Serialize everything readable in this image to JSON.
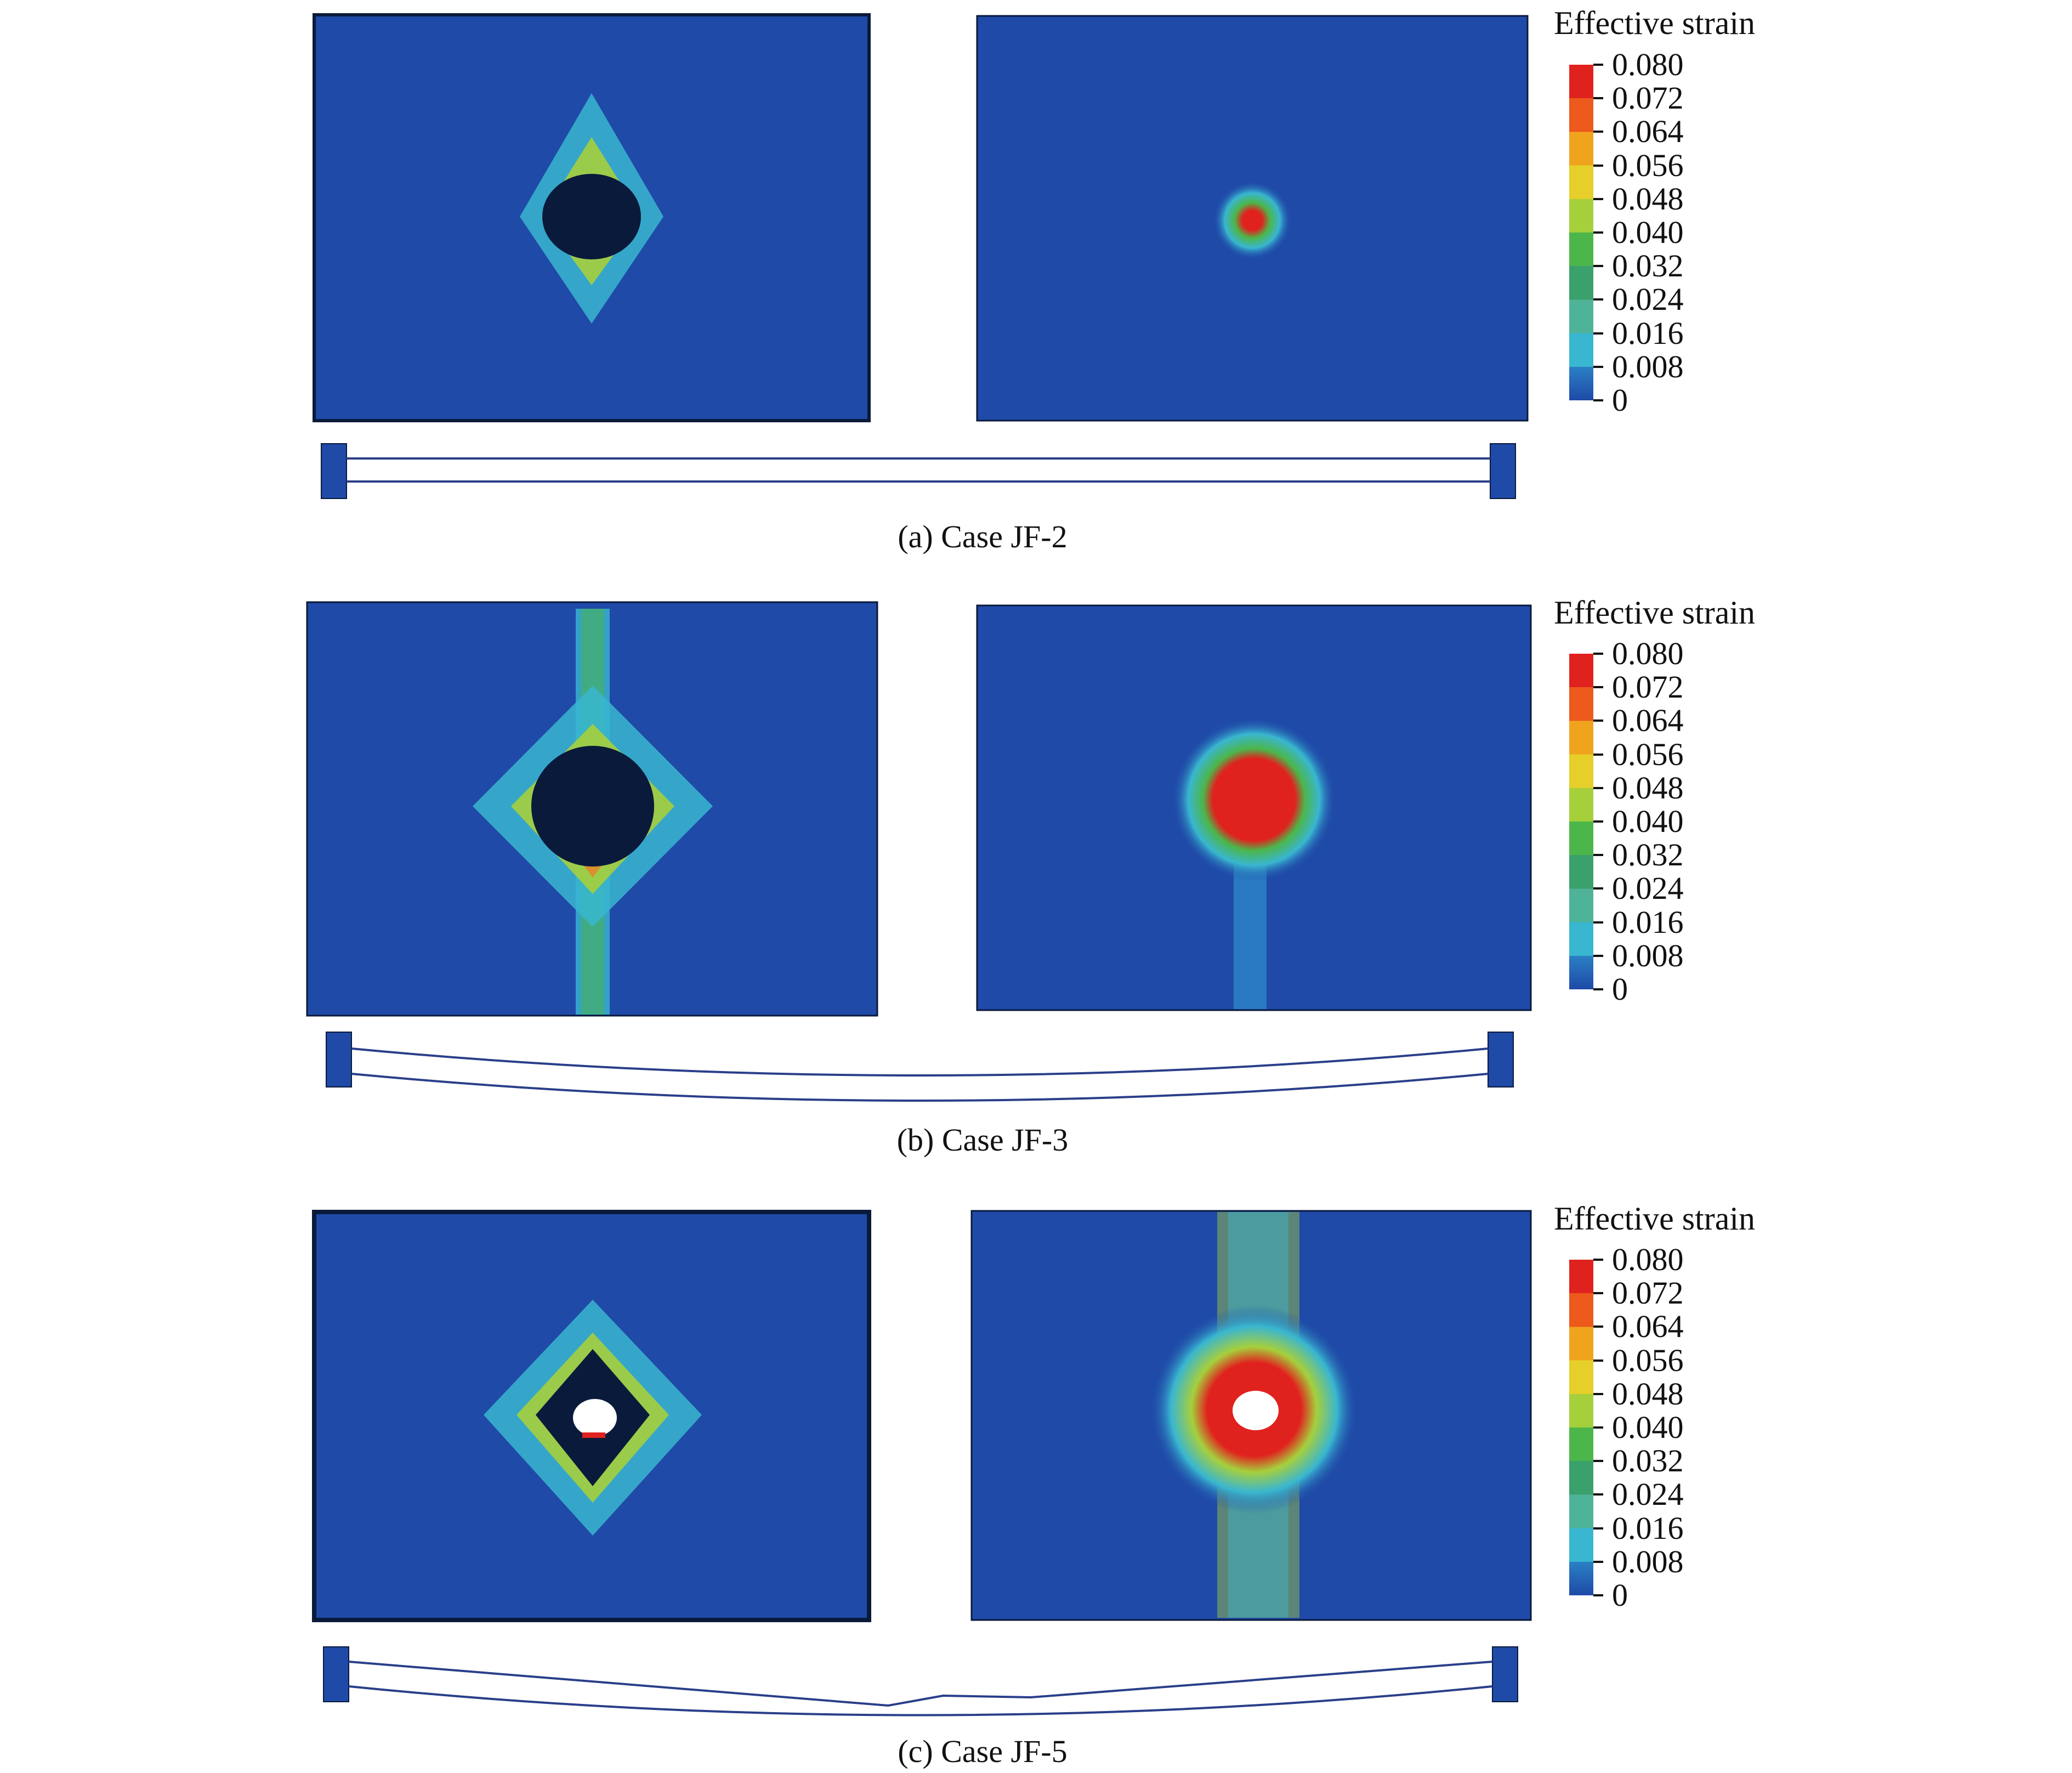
{
  "panels": [
    {
      "caption": "(a) Case JF-2",
      "legend_title": "Effective strain",
      "legend_ticks": [
        "0.080",
        "0.072",
        "0.064",
        "0.056",
        "0.048",
        "0.040",
        "0.032",
        "0.024",
        "0.016",
        "0.008",
        "0"
      ]
    },
    {
      "caption": "(b) Case JF-3",
      "legend_title": "Effective strain",
      "legend_ticks": [
        "0.080",
        "0.072",
        "0.064",
        "0.056",
        "0.048",
        "0.040",
        "0.032",
        "0.024",
        "0.016",
        "0.008",
        "0"
      ]
    },
    {
      "caption": "(c) Case JF-5",
      "legend_title": "Effective strain",
      "legend_ticks": [
        "0.080",
        "0.072",
        "0.064",
        "0.056",
        "0.048",
        "0.040",
        "0.032",
        "0.024",
        "0.016",
        "0.008",
        "0"
      ]
    }
  ],
  "colors": {
    "background_plate": "#1f4aa8",
    "strain_scale": [
      "#e0221e",
      "#ec5a1c",
      "#f0a41e",
      "#e6cf2a",
      "#a6cf3c",
      "#4cb64a",
      "#3aa16c",
      "#4fb39a",
      "#39b6d0",
      "#2a80c4",
      "#1f4aa8"
    ],
    "damage_dark": "#0a1a3a",
    "line": "#2a3f8a"
  }
}
